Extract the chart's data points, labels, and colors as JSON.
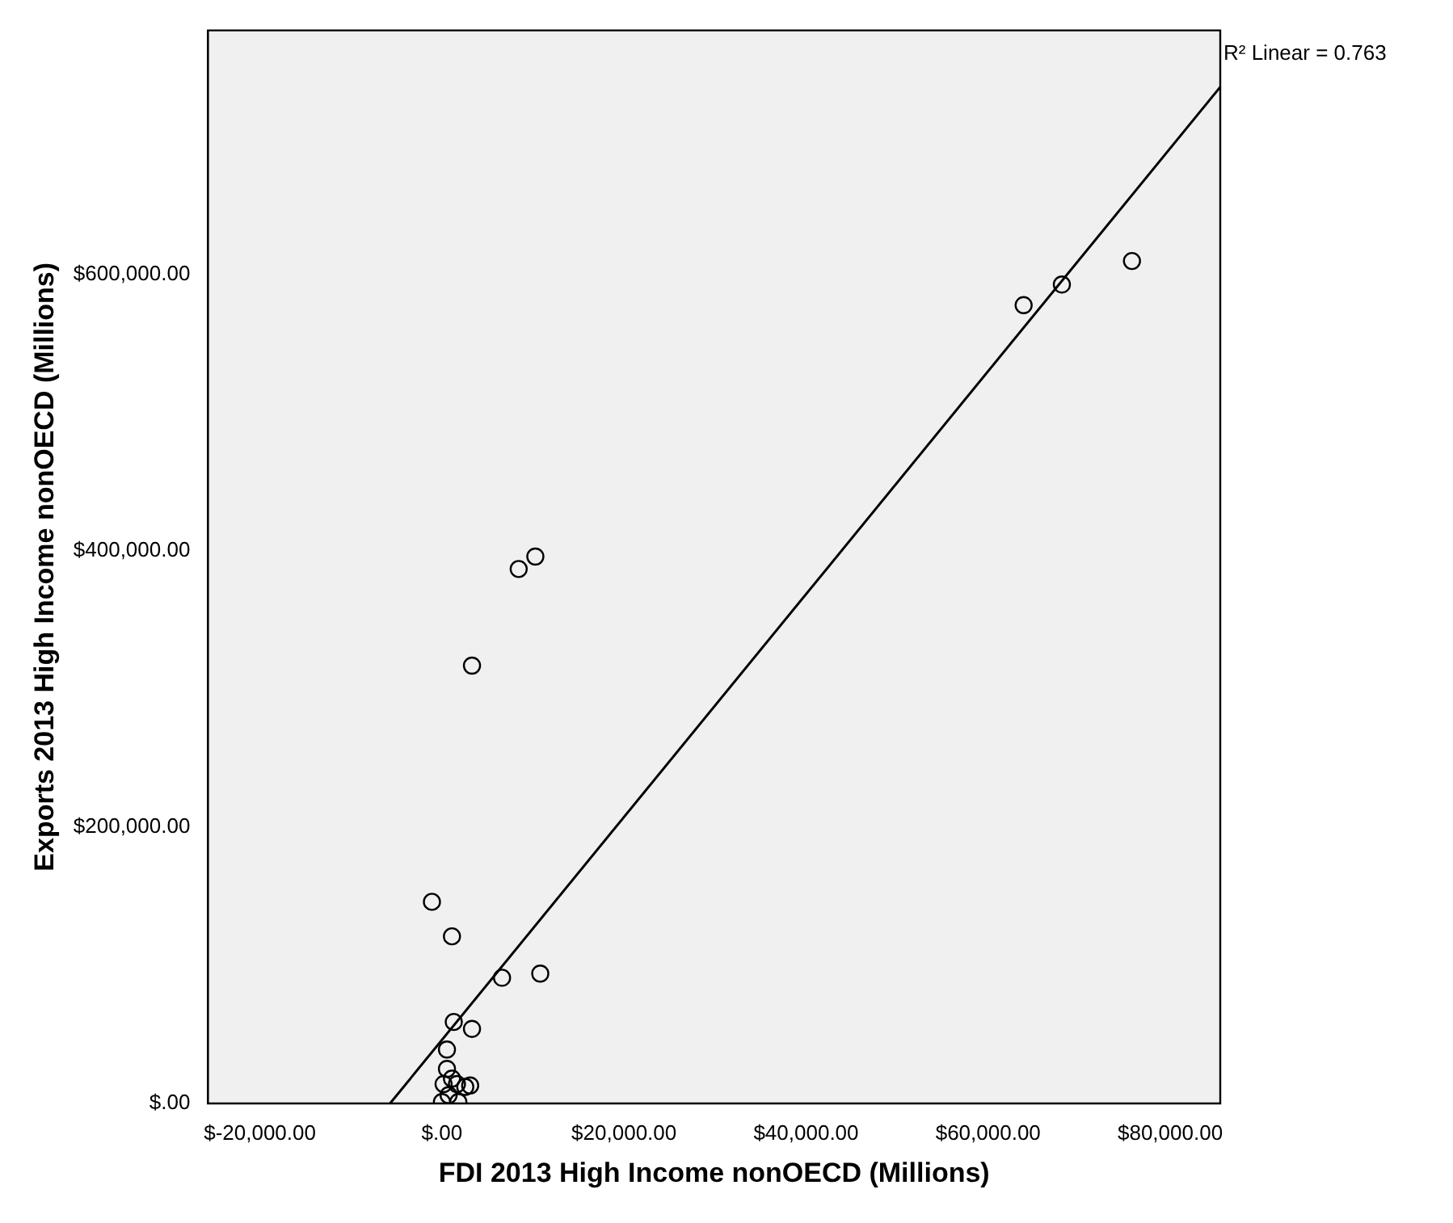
{
  "chart_data": {
    "type": "scatter",
    "xlabel": "FDI 2013 High Income nonOECD (Millions)",
    "ylabel": "Exports 2013 High Income nonOECD (Millions)",
    "annotations": [
      "R² Linear = 0.763"
    ],
    "xlim": [
      -25700,
      85500
    ],
    "xticks": [
      {
        "value": -20000,
        "label": "$-20,000.00"
      },
      {
        "value": 0,
        "label": "$.00"
      },
      {
        "value": 20000,
        "label": "$20,000.00"
      },
      {
        "value": 40000,
        "label": "$40,000.00"
      },
      {
        "value": 60000,
        "label": "$60,000.00"
      },
      {
        "value": 80000,
        "label": "$80,000.00"
      }
    ],
    "ylim": [
      0,
      777000
    ],
    "yticks": [
      {
        "value": 0,
        "label": "$.00"
      },
      {
        "value": 200000,
        "label": "$200,000.00"
      },
      {
        "value": 400000,
        "label": "$400,000.00"
      },
      {
        "value": 600000,
        "label": "$600,000.00"
      }
    ],
    "grid": false,
    "legend": false,
    "marker": "circle",
    "series": [
      {
        "color": "#000000",
        "x": [
          75800,
          68100,
          63900,
          10260,
          8430,
          3300,
          -1100,
          1100,
          6600,
          10800,
          1300,
          3300,
          550,
          550,
          1100,
          180,
          1650,
          3100,
          2560,
          0,
          1800,
          730
        ],
        "values": [
          610000,
          593000,
          578000,
          396000,
          387000,
          317000,
          146000,
          121000,
          91000,
          94000,
          59000,
          54000,
          39000,
          25000,
          18000,
          14000,
          14000,
          13000,
          12000,
          1000,
          1000,
          6000
        ]
      },
      {
        "type": "line",
        "color": "#000000",
        "marker": "none",
        "line_style": "solid",
        "x": [
          -5700,
          85500
        ],
        "values": [
          0,
          736000
        ]
      }
    ]
  }
}
